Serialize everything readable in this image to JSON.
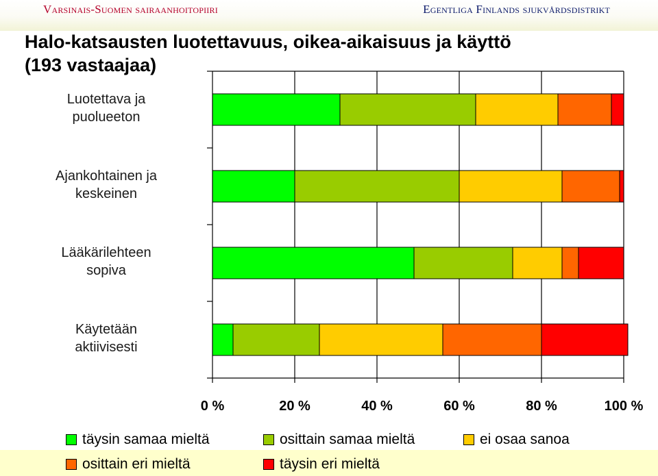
{
  "header": {
    "org_left": "Varsinais-Suomen sairaanhoitopiiri",
    "org_right": "Egentliga Finlands sjukvårdsdistrikt"
  },
  "chart_data": {
    "type": "bar",
    "orientation": "horizontal",
    "stacked": "percent",
    "title_line1": "Halo-katsausten luotettavuus, oikea-aikaisuus ja käyttö",
    "title_line2": "(193 vastaajaa)",
    "categories": [
      "Luotettava ja\npuolueeton",
      "Ajankohtainen ja\nkeskeinen",
      "Lääkärilehteen\nsopiva",
      "Käytetään\naktiivisesti"
    ],
    "series": [
      {
        "name": "täysin samaa mieltä",
        "color": "#00ff00",
        "values": [
          31,
          20,
          49,
          5
        ]
      },
      {
        "name": "osittain samaa mieltä",
        "color": "#99cc00",
        "values": [
          33,
          40,
          24,
          21
        ]
      },
      {
        "name": "ei osaa sanoa",
        "color": "#ffcc00",
        "values": [
          20,
          25,
          12,
          30
        ]
      },
      {
        "name": "osittain eri mieltä",
        "color": "#ff6600",
        "values": [
          13,
          14,
          4,
          24
        ]
      },
      {
        "name": "täysin eri mieltä",
        "color": "#ff0000",
        "values": [
          3,
          1,
          11,
          21
        ]
      }
    ],
    "x_ticks": [
      "0 %",
      "20 %",
      "40 %",
      "60 %",
      "80 %",
      "100 %"
    ],
    "xlim": [
      0,
      100
    ],
    "grid": "vertical",
    "legend_position": "bottom"
  }
}
